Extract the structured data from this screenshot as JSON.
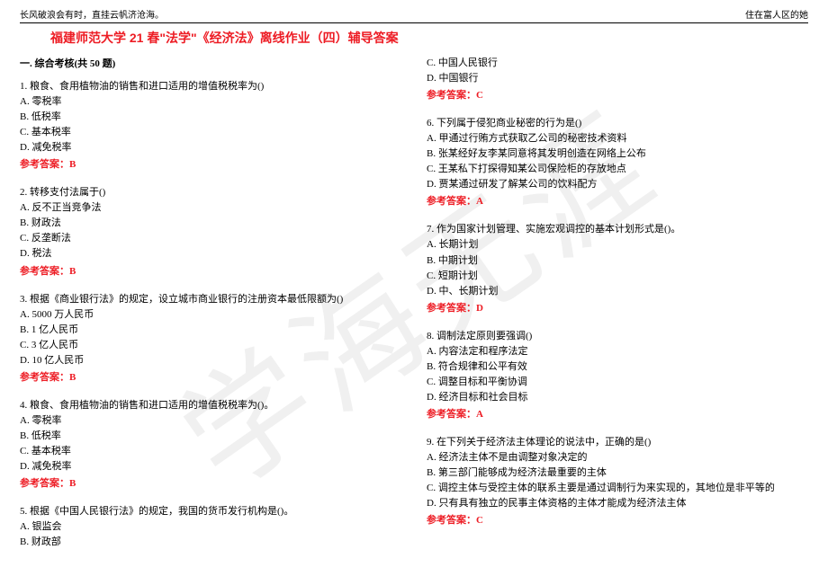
{
  "watermark": "学海无涯",
  "header_left": "长风破浪会有时，直挂云帆济沧海。",
  "header_right": "住在富人区的她",
  "title": "福建师范大学 21 春\"法学\"《经济法》离线作业（四）辅导答案",
  "section_head": "一. 综合考核(共 50 题)",
  "colors": {
    "accent": "#ed1c24",
    "text": "#000000",
    "watermark": "rgba(0,0,0,0.06)"
  },
  "left_questions": [
    {
      "stem": "1. 粮食、食用植物油的销售和进口适用的增值税税率为()",
      "opts": [
        "A. 零税率",
        "B. 低税率",
        "C. 基本税率",
        "D. 减免税率"
      ],
      "ans": "参考答案：B"
    },
    {
      "stem": "2. 转移支付法属于()",
      "opts": [
        "A. 反不正当竞争法",
        "B. 财政法",
        "C. 反垄断法",
        "D. 税法"
      ],
      "ans": "参考答案：B"
    },
    {
      "stem": "3. 根据《商业银行法》的规定，设立城市商业银行的注册资本最低限额为()",
      "opts": [
        "A. 5000 万人民币",
        "B. 1 亿人民币",
        "C. 3 亿人民币",
        "D. 10 亿人民币"
      ],
      "ans": "参考答案：B"
    },
    {
      "stem": "4. 粮食、食用植物油的销售和进口适用的增值税税率为()。",
      "opts": [
        "A. 零税率",
        "B. 低税率",
        "C. 基本税率",
        "D. 减免税率"
      ],
      "ans": "参考答案：B"
    },
    {
      "stem": "5. 根据《中国人民银行法》的规定，我国的货币发行机构是()。",
      "opts": [
        "A. 银监会",
        "B. 财政部"
      ],
      "ans": ""
    }
  ],
  "right_top_opts": [
    "C. 中国人民银行",
    "D. 中国银行"
  ],
  "right_top_ans": "参考答案：C",
  "right_questions": [
    {
      "stem": "6. 下列属于侵犯商业秘密的行为是()",
      "opts": [
        "A. 甲通过行贿方式获取乙公司的秘密技术资料",
        "B. 张某经好友李某同意将其发明创造在网络上公布",
        "C. 王某私下打探得知某公司保险柜的存放地点",
        "D. 贾某通过研发了解某公司的饮料配方"
      ],
      "ans": "参考答案：A"
    },
    {
      "stem": "7. 作为国家计划管理、实施宏观调控的基本计划形式是()。",
      "opts": [
        "A. 长期计划",
        "B. 中期计划",
        "C. 短期计划",
        "D. 中、长期计划"
      ],
      "ans": "参考答案：D"
    },
    {
      "stem": "8. 调制法定原则要强调()",
      "opts": [
        "A. 内容法定和程序法定",
        "B. 符合规律和公平有效",
        "C. 调整目标和平衡协调",
        "D. 经济目标和社会目标"
      ],
      "ans": "参考答案：A"
    },
    {
      "stem": "9. 在下列关于经济法主体理论的说法中，正确的是()",
      "opts": [
        "A. 经济法主体不是由调整对象决定的",
        "B. 第三部门能够成为经济法最重要的主体",
        "C. 调控主体与受控主体的联系主要是通过调制行为来实现的，其地位是非平等的",
        "D. 只有具有独立的民事主体资格的主体才能成为经济法主体"
      ],
      "ans": "参考答案：C"
    }
  ]
}
